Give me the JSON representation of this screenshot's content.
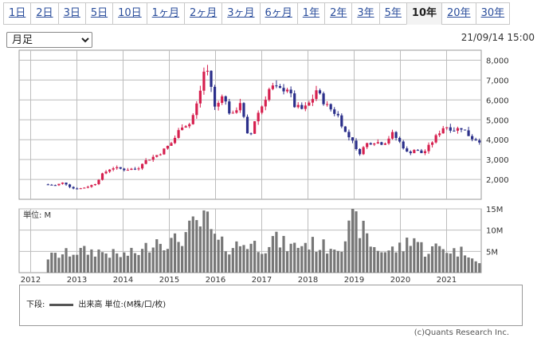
{
  "tabs": [
    {
      "label": "1日",
      "active": false
    },
    {
      "label": "2日",
      "active": false
    },
    {
      "label": "3日",
      "active": false
    },
    {
      "label": "5日",
      "active": false
    },
    {
      "label": "10日",
      "active": false
    },
    {
      "label": "1ヶ月",
      "active": false
    },
    {
      "label": "2ヶ月",
      "active": false
    },
    {
      "label": "3ヶ月",
      "active": false
    },
    {
      "label": "6ヶ月",
      "active": false
    },
    {
      "label": "1年",
      "active": false
    },
    {
      "label": "2年",
      "active": false
    },
    {
      "label": "3年",
      "active": false
    },
    {
      "label": "5年",
      "active": false
    },
    {
      "label": "10年",
      "active": true
    },
    {
      "label": "20年",
      "active": false
    },
    {
      "label": "30年",
      "active": false
    }
  ],
  "period_select": {
    "selected": "月足"
  },
  "timestamp": "21/09/14 15:00",
  "volume_unit_label": "単位: M",
  "legend": {
    "prefix": "下段:",
    "label": "出来高 単位:(M株/口/枚)"
  },
  "copyright": "(c)Quants Research Inc.",
  "colors": {
    "up": "#d6204f",
    "down": "#2b2f8a",
    "volume": "#777777",
    "grid": "#bdbdbd"
  },
  "chart_data": {
    "type": "candlestick",
    "price_axis": {
      "ylim": [
        1000,
        8500
      ],
      "ticks": [
        2000,
        3000,
        4000,
        5000,
        6000,
        7000,
        8000
      ],
      "tick_labels": [
        "2,000",
        "3,000",
        "4,000",
        "5,000",
        "6,000",
        "7,000",
        "8,000"
      ]
    },
    "volume_axis": {
      "ylim": [
        0,
        15
      ],
      "ticks": [
        5,
        10,
        15
      ],
      "tick_labels": [
        "5M",
        "10M",
        "15M"
      ]
    },
    "x_axis": {
      "labels": [
        "2012",
        "2013",
        "2014",
        "2015",
        "2016",
        "2017",
        "2018",
        "2019",
        "2020",
        "2021"
      ],
      "start_year": 2011.75,
      "end_year": 2021.75
    },
    "grid": true,
    "keypoints": [
      [
        2011.75,
        1750
      ],
      [
        2012.0,
        1700
      ],
      [
        2012.2,
        1850
      ],
      [
        2012.4,
        1550
      ],
      [
        2012.6,
        1550
      ],
      [
        2012.9,
        1750
      ],
      [
        2013.1,
        2300
      ],
      [
        2013.3,
        2600
      ],
      [
        2013.6,
        2500
      ],
      [
        2013.9,
        2550
      ],
      [
        2014.0,
        2850
      ],
      [
        2014.4,
        3300
      ],
      [
        2014.7,
        3900
      ],
      [
        2014.9,
        4700
      ],
      [
        2015.1,
        4800
      ],
      [
        2015.3,
        6100
      ],
      [
        2015.45,
        7800
      ],
      [
        2015.55,
        7100
      ],
      [
        2015.7,
        5200
      ],
      [
        2015.8,
        6500
      ],
      [
        2015.95,
        5700
      ],
      [
        2016.05,
        5100
      ],
      [
        2016.25,
        5900
      ],
      [
        2016.45,
        3900
      ],
      [
        2016.6,
        5100
      ],
      [
        2016.75,
        5700
      ],
      [
        2016.95,
        6700
      ],
      [
        2017.15,
        6500
      ],
      [
        2017.35,
        6600
      ],
      [
        2017.5,
        5700
      ],
      [
        2017.7,
        5500
      ],
      [
        2017.9,
        6000
      ],
      [
        2018.0,
        6500
      ],
      [
        2018.2,
        5800
      ],
      [
        2018.5,
        5200
      ],
      [
        2018.7,
        4200
      ],
      [
        2018.85,
        4000
      ],
      [
        2018.95,
        3200
      ],
      [
        2019.15,
        3800
      ],
      [
        2019.35,
        3900
      ],
      [
        2019.55,
        3800
      ],
      [
        2019.75,
        4300
      ],
      [
        2019.95,
        3800
      ],
      [
        2020.1,
        3300
      ],
      [
        2020.25,
        3500
      ],
      [
        2020.45,
        3300
      ],
      [
        2020.6,
        3700
      ],
      [
        2020.8,
        4300
      ],
      [
        2020.95,
        4700
      ],
      [
        2021.15,
        4500
      ],
      [
        2021.35,
        4600
      ],
      [
        2021.55,
        4100
      ],
      [
        2021.75,
        3950
      ]
    ],
    "volume_keypoints": [
      [
        2011.75,
        3.5
      ],
      [
        2012.5,
        5
      ],
      [
        2013.0,
        5
      ],
      [
        2013.5,
        4
      ],
      [
        2014.0,
        5
      ],
      [
        2014.3,
        8
      ],
      [
        2014.7,
        7
      ],
      [
        2015.0,
        9
      ],
      [
        2015.2,
        11
      ],
      [
        2015.5,
        12
      ],
      [
        2015.7,
        7
      ],
      [
        2016.0,
        6
      ],
      [
        2016.4,
        7
      ],
      [
        2016.8,
        6
      ],
      [
        2017.0,
        8
      ],
      [
        2017.4,
        6
      ],
      [
        2017.8,
        7
      ],
      [
        2018.2,
        6
      ],
      [
        2018.6,
        7
      ],
      [
        2018.85,
        12
      ],
      [
        2019.0,
        11
      ],
      [
        2019.3,
        6
      ],
      [
        2019.6,
        5
      ],
      [
        2020.0,
        6
      ],
      [
        2020.2,
        9
      ],
      [
        2020.5,
        5
      ],
      [
        2020.8,
        6
      ],
      [
        2021.2,
        5
      ],
      [
        2021.55,
        5
      ],
      [
        2021.7,
        2
      ]
    ]
  }
}
